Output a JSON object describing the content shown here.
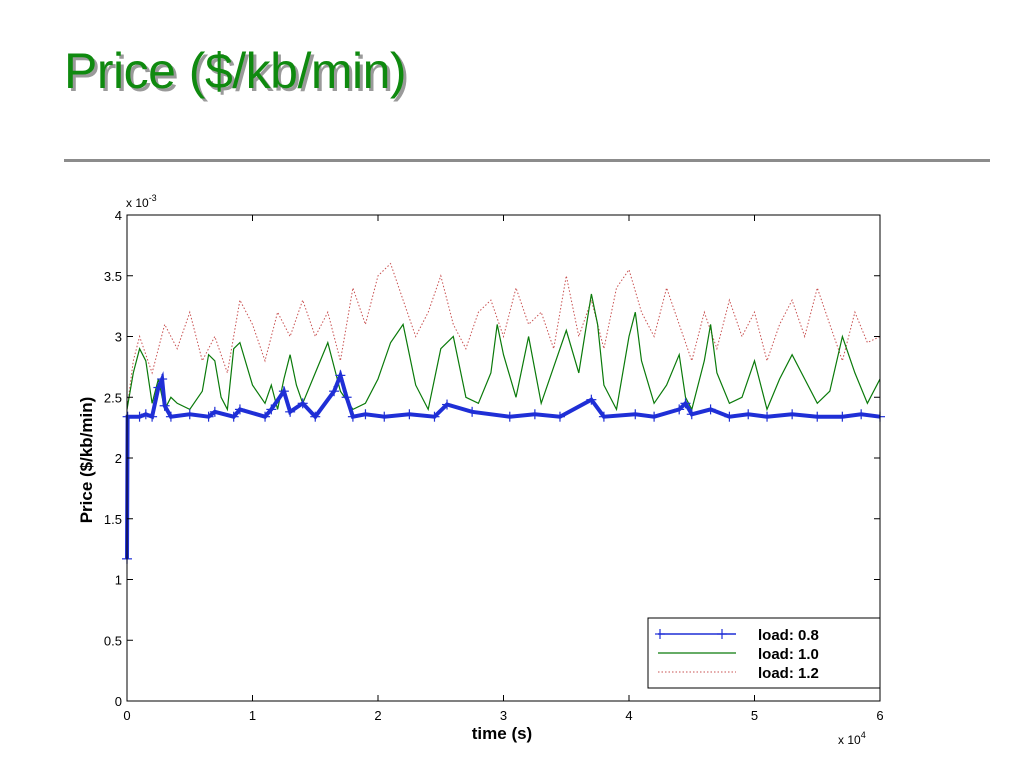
{
  "slide": {
    "title": "Price ($/kb/min)"
  },
  "colors": {
    "title": "#0f8a0f",
    "load_08": "#1f2fd6",
    "load_10": "#0a7a0a",
    "load_12": "#c85050"
  },
  "chart_data": {
    "type": "line",
    "title": "",
    "xlabel": "time (s)",
    "ylabel": "Price ($/kb/min)",
    "x_exponent_label": "x 10",
    "x_exponent_power": "4",
    "y_exponent_label": "x 10",
    "y_exponent_power": "-3",
    "xlim": [
      0,
      60000
    ],
    "ylim": [
      0,
      0.004
    ],
    "x_ticks": [
      0,
      10000,
      20000,
      30000,
      40000,
      50000,
      60000
    ],
    "x_tick_labels": [
      "0",
      "1",
      "2",
      "3",
      "4",
      "5",
      "6"
    ],
    "y_ticks": [
      0,
      0.0005,
      0.001,
      0.0015,
      0.002,
      0.0025,
      0.003,
      0.0035,
      0.004
    ],
    "y_tick_labels": [
      "0",
      "0.5",
      "1",
      "1.5",
      "2",
      "2.5",
      "3",
      "3.5",
      "4"
    ],
    "grid": false,
    "legend_position": "bottom-right",
    "series": [
      {
        "name": "load: 0.8",
        "style": "solid-plus",
        "x": [
          0,
          50,
          1000,
          1500,
          2000,
          2500,
          2800,
          3000,
          3500,
          5000,
          6500,
          7000,
          8500,
          9000,
          11000,
          11500,
          12500,
          13000,
          14000,
          15000,
          16500,
          17000,
          17500,
          18000,
          19000,
          20500,
          22500,
          24500,
          25500,
          27500,
          30500,
          32500,
          34500,
          37000,
          38000,
          40500,
          42000,
          44000,
          44500,
          45000,
          46500,
          48000,
          49500,
          51000,
          53000,
          55000,
          57000,
          58500,
          60000
        ],
        "y": [
          0.00117,
          0.00234,
          0.00234,
          0.00236,
          0.00234,
          0.00258,
          0.00265,
          0.00243,
          0.00234,
          0.00236,
          0.00234,
          0.00238,
          0.00234,
          0.0024,
          0.00234,
          0.0024,
          0.00255,
          0.00238,
          0.00245,
          0.00234,
          0.00255,
          0.00268,
          0.0025,
          0.00234,
          0.00236,
          0.00234,
          0.00236,
          0.00234,
          0.00244,
          0.00238,
          0.00234,
          0.00236,
          0.00234,
          0.00248,
          0.00234,
          0.00236,
          0.00234,
          0.0024,
          0.00245,
          0.00236,
          0.0024,
          0.00234,
          0.00236,
          0.00234,
          0.00236,
          0.00234,
          0.00234,
          0.00236,
          0.00234
        ]
      },
      {
        "name": "load: 1.0",
        "style": "solid",
        "x": [
          0,
          500,
          1000,
          1500,
          2000,
          2500,
          3000,
          3500,
          4000,
          5000,
          6000,
          6500,
          7000,
          7500,
          8000,
          8500,
          9000,
          10000,
          11000,
          11500,
          12000,
          12500,
          13000,
          13500,
          14000,
          15000,
          16000,
          16500,
          17000,
          18000,
          19000,
          20000,
          21000,
          22000,
          22500,
          23000,
          24000,
          25000,
          26000,
          27000,
          28000,
          29000,
          29500,
          30000,
          31000,
          32000,
          33000,
          34000,
          35000,
          36000,
          37000,
          37500,
          38000,
          39000,
          40000,
          40500,
          41000,
          42000,
          43000,
          44000,
          44500,
          45000,
          46000,
          46500,
          47000,
          48000,
          49000,
          50000,
          51000,
          52000,
          53000,
          54000,
          55000,
          56000,
          57000,
          58000,
          59000,
          60000
        ],
        "y": [
          0.0024,
          0.0027,
          0.0029,
          0.0028,
          0.00245,
          0.00265,
          0.0024,
          0.0025,
          0.00245,
          0.0024,
          0.00255,
          0.00285,
          0.0028,
          0.0025,
          0.0024,
          0.0029,
          0.00295,
          0.0026,
          0.00245,
          0.0026,
          0.0024,
          0.00265,
          0.00285,
          0.0026,
          0.00245,
          0.0027,
          0.00295,
          0.00275,
          0.00255,
          0.0024,
          0.00245,
          0.00265,
          0.00295,
          0.0031,
          0.00285,
          0.0026,
          0.0024,
          0.0029,
          0.003,
          0.0025,
          0.00245,
          0.0027,
          0.0031,
          0.00285,
          0.0025,
          0.003,
          0.00245,
          0.00275,
          0.00305,
          0.0027,
          0.00335,
          0.0031,
          0.0026,
          0.0024,
          0.003,
          0.0032,
          0.0028,
          0.00245,
          0.0026,
          0.00285,
          0.0025,
          0.0024,
          0.0028,
          0.0031,
          0.0027,
          0.00245,
          0.0025,
          0.0028,
          0.0024,
          0.00265,
          0.00285,
          0.00265,
          0.00245,
          0.00255,
          0.003,
          0.0027,
          0.00245,
          0.00265
        ]
      },
      {
        "name": "load: 1.2",
        "style": "dotted",
        "x": [
          0,
          500,
          1000,
          2000,
          3000,
          4000,
          5000,
          6000,
          7000,
          8000,
          9000,
          10000,
          11000,
          12000,
          13000,
          14000,
          15000,
          16000,
          17000,
          18000,
          19000,
          20000,
          21000,
          22000,
          23000,
          24000,
          25000,
          26000,
          27000,
          28000,
          29000,
          30000,
          31000,
          32000,
          33000,
          34000,
          35000,
          36000,
          37000,
          38000,
          39000,
          40000,
          41000,
          42000,
          43000,
          44000,
          45000,
          46000,
          47000,
          48000,
          49000,
          50000,
          51000,
          52000,
          53000,
          54000,
          55000,
          56000,
          57000,
          58000,
          59000,
          60000
        ],
        "y": [
          0.0024,
          0.0028,
          0.003,
          0.0027,
          0.0031,
          0.0029,
          0.0032,
          0.0028,
          0.003,
          0.0027,
          0.0033,
          0.0031,
          0.0028,
          0.0032,
          0.003,
          0.0033,
          0.003,
          0.0032,
          0.0028,
          0.0034,
          0.0031,
          0.0035,
          0.0036,
          0.0033,
          0.003,
          0.0032,
          0.0035,
          0.0031,
          0.0029,
          0.0032,
          0.0033,
          0.003,
          0.0034,
          0.0031,
          0.0032,
          0.0029,
          0.0035,
          0.003,
          0.0033,
          0.0029,
          0.0034,
          0.00355,
          0.0032,
          0.003,
          0.0034,
          0.0031,
          0.0028,
          0.0032,
          0.0029,
          0.0033,
          0.003,
          0.0032,
          0.0028,
          0.0031,
          0.0033,
          0.003,
          0.0034,
          0.0031,
          0.0028,
          0.0032,
          0.00295,
          0.003
        ]
      }
    ]
  }
}
